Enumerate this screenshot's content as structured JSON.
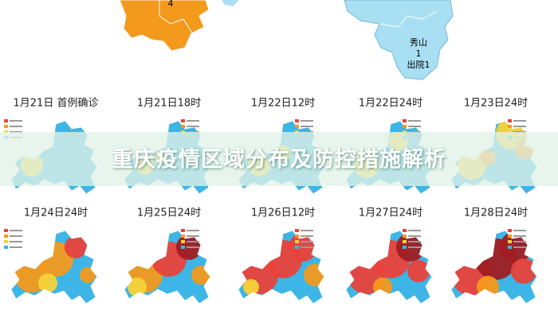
{
  "top_map": {
    "left_label": "4",
    "right_labels": [
      "秀山",
      "1",
      "出院1"
    ]
  },
  "title": "重庆疫情区域分布及防控措施解析",
  "panels": [
    {
      "label": "1月21日 首例确诊"
    },
    {
      "label": "1月21日18时"
    },
    {
      "label": "1月22日12时"
    },
    {
      "label": "1月22日24时"
    },
    {
      "label": "1月23日24时"
    },
    {
      "label": "1月24日24时"
    },
    {
      "label": "1月25日24时"
    },
    {
      "label": "1月26日12时"
    },
    {
      "label": "1月27日24时"
    },
    {
      "label": "1月28日24时"
    }
  ]
}
